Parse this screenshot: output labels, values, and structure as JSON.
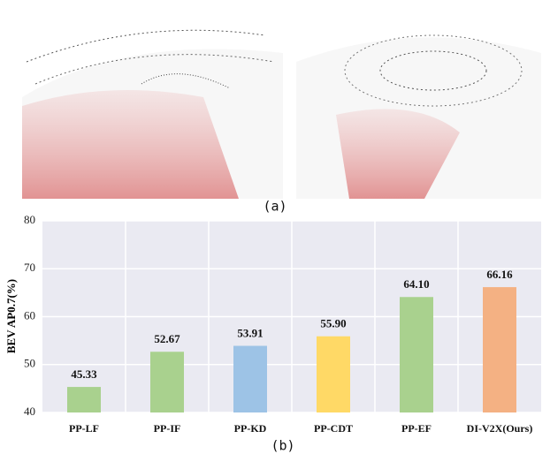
{
  "caption_a": "(a)",
  "chart_data": {
    "type": "bar",
    "caption": "(b)",
    "y_label": "BEV AP0.7(%)",
    "categories": [
      "PP-LF",
      "PP-IF",
      "PP-KD",
      "PP-CDT",
      "PP-EF",
      "DI-V2X(Ours)"
    ],
    "values": [
      45.33,
      52.67,
      53.91,
      55.9,
      64.1,
      66.16
    ],
    "value_labels": [
      "45.33",
      "52.67",
      "53.91",
      "55.90",
      "64.10",
      "66.16"
    ],
    "colors": [
      "#a9d18e",
      "#a9d18e",
      "#9dc3e6",
      "#ffd966",
      "#a9d18e",
      "#f4b183"
    ],
    "ylim": [
      40,
      80
    ],
    "yticks": [
      40,
      50,
      60,
      70,
      80
    ],
    "grid": true
  }
}
